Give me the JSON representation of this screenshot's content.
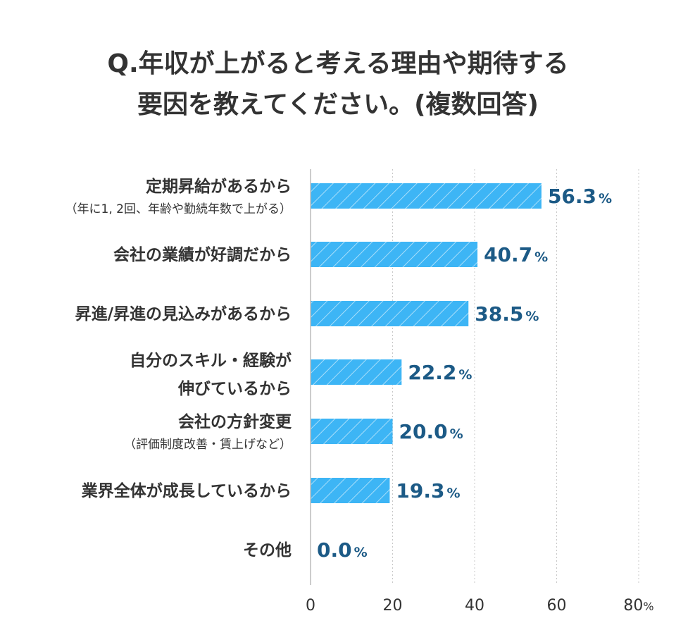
{
  "title_lines": [
    "Q.年収が上がると考える理由や期待する",
    "要因を教えてください。(複数回答)"
  ],
  "colors": {
    "bar": "#3db5f5",
    "value_text": "#1c5a86",
    "text": "#333333",
    "grid": "#c8c8c8"
  },
  "chart_data": {
    "type": "bar",
    "orientation": "horizontal",
    "title": "Q.年収が上がると考える理由や期待する要因を教えてください。(複数回答)",
    "categories": [
      {
        "lines": [
          "定期昇給があるから"
        ],
        "sub": "（年に1, 2回、年齢や勤続年数で上がる）"
      },
      {
        "lines": [
          "会社の業績が好調だから"
        ],
        "sub": ""
      },
      {
        "lines": [
          "昇進/昇進の見込みがあるから"
        ],
        "sub": ""
      },
      {
        "lines": [
          "自分のスキル・経験が",
          "伸びているから"
        ],
        "sub": ""
      },
      {
        "lines": [
          "会社の方針変更"
        ],
        "sub": "（評価制度改善・賃上げなど）"
      },
      {
        "lines": [
          "業界全体が成長しているから"
        ],
        "sub": ""
      },
      {
        "lines": [
          "その他"
        ],
        "sub": ""
      }
    ],
    "values": [
      56.3,
      40.7,
      38.5,
      22.2,
      20.0,
      19.3,
      0.0
    ],
    "value_labels": [
      "56.3",
      "40.7",
      "38.5",
      "22.2",
      "20.0",
      "19.3",
      "0.0"
    ],
    "value_unit": "%",
    "xlim": [
      0,
      80
    ],
    "xticks": [
      "0",
      "20",
      "40",
      "60",
      "80"
    ],
    "xtick_unit": "%",
    "grid": true,
    "bar_pattern": "diagonal-stripes"
  }
}
